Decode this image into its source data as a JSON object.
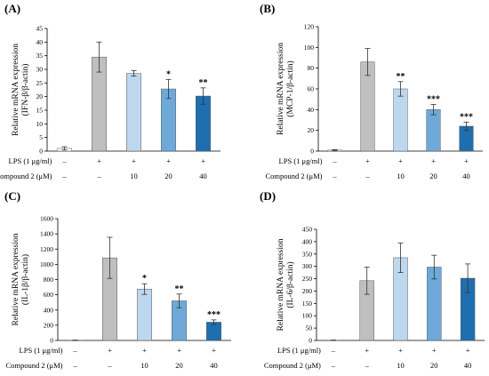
{
  "figure": {
    "row_labels": {
      "lps": "LPS (1 μg/ml)",
      "compound": "Compound 2 (μM)"
    },
    "lps_values": [
      "–",
      "+",
      "+",
      "+",
      "+"
    ],
    "compound_values": [
      "–",
      "–",
      "10",
      "20",
      "40"
    ]
  },
  "colors": {
    "bars": [
      "#ffffff",
      "#bfbfbf",
      "#bdd7ee",
      "#6ea9d9",
      "#1f6fb0"
    ]
  },
  "chart_data": [
    {
      "type": "bar",
      "panel": "(A)",
      "ylabel": [
        "Relative mRNA expression",
        "(IFN-β/β-actin)"
      ],
      "ylim": [
        0,
        45
      ],
      "yticks": [
        0,
        5,
        10,
        15,
        20,
        25,
        30,
        35,
        40,
        45
      ],
      "values": [
        1,
        34.5,
        28.5,
        22.8,
        20.2
      ],
      "errors": [
        0.6,
        5.5,
        1.0,
        3.5,
        3.0
      ],
      "significance": [
        "",
        "",
        "",
        "*",
        "**"
      ]
    },
    {
      "type": "bar",
      "panel": "(B)",
      "ylabel": [
        "Relative mRNA expression",
        "(MCP-1/β-actin)"
      ],
      "ylim": [
        0,
        120
      ],
      "yticks": [
        0,
        20,
        40,
        60,
        80,
        100,
        120
      ],
      "values": [
        1,
        86,
        60,
        40,
        24
      ],
      "errors": [
        0.5,
        13,
        7,
        5,
        4
      ],
      "significance": [
        "",
        "",
        "**",
        "***",
        "***"
      ]
    },
    {
      "type": "bar",
      "panel": "(C)",
      "ylabel": [
        "Relative mRNA expression",
        "(IL-1β/β-actin)"
      ],
      "ylim": [
        0,
        1600
      ],
      "yticks": [
        0,
        200,
        400,
        600,
        800,
        1000,
        1200,
        1400,
        1600
      ],
      "values": [
        3,
        1085,
        675,
        520,
        240
      ],
      "errors": [
        2,
        270,
        70,
        90,
        30
      ],
      "significance": [
        "",
        "",
        "*",
        "**",
        "***"
      ]
    },
    {
      "type": "bar",
      "panel": "(D)",
      "ylabel": [
        "Relative mRNA expression",
        "(IL-6/β-actin)"
      ],
      "ylim": [
        0,
        450
      ],
      "yticks": [
        0,
        50,
        100,
        150,
        200,
        250,
        300,
        350,
        400,
        450
      ],
      "values": [
        1,
        242,
        335,
        297,
        252
      ],
      "errors": [
        0.5,
        55,
        60,
        48,
        58
      ],
      "significance": [
        "",
        "",
        "",
        "",
        ""
      ]
    }
  ]
}
